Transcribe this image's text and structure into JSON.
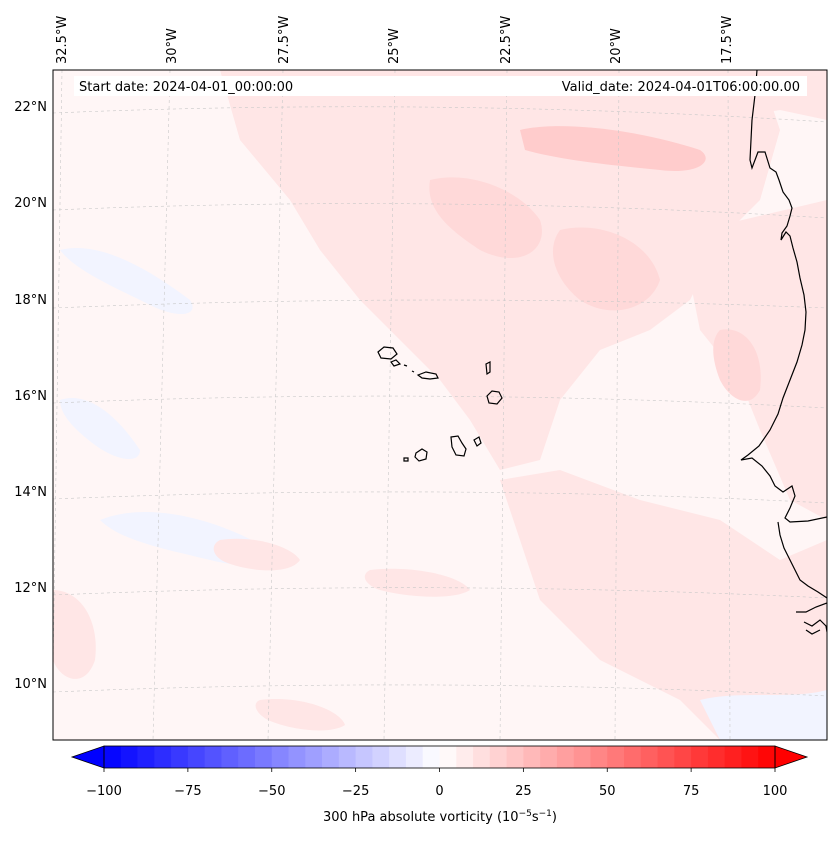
{
  "header": {
    "start_date": "Start date: 2024-04-01_00:00:00",
    "valid_date": "Valid_date: 2024-04-01T06:00:00.00"
  },
  "map": {
    "longitude_labels": [
      "32.5°W",
      "30°W",
      "27.5°W",
      "25°W",
      "22.5°W",
      "20°W",
      "17.5°W"
    ],
    "latitude_labels": [
      "22°N",
      "20°N",
      "18°N",
      "16°N",
      "14°N",
      "12°N",
      "10°N"
    ],
    "colors": {
      "background_tint": "#fff6f6",
      "weak_positive": "#ffe6e6",
      "moderate_positive": "#ffd9d9",
      "strongest_positive": "#ffcccc",
      "weak_negative": "#f2f4ff",
      "coastline": "#000000",
      "gridline": "#c8c8c8"
    }
  },
  "colorbar": {
    "tick_values": [
      -100,
      -75,
      -50,
      -25,
      0,
      25,
      50,
      75,
      100
    ],
    "tick_labels": [
      "−100",
      "−75",
      "−50",
      "−25",
      "0",
      "25",
      "50",
      "75",
      "100"
    ],
    "range": [
      -100,
      100
    ],
    "step": 5,
    "color_min": "#0000ff",
    "color_mid": "#ffffff",
    "color_max": "#ff0000",
    "label_main": "300 hPa absolute vorticity (10",
    "label_exp1": "−5",
    "label_unit": "s",
    "label_exp2": "−1",
    "label_close": ")"
  }
}
